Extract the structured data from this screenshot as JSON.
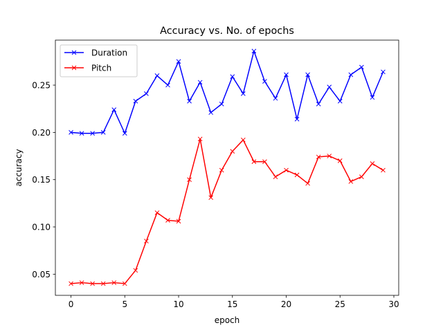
{
  "chart_data": {
    "type": "line",
    "title": "Accuracy vs. No. of epochs",
    "xlabel": "epoch",
    "ylabel": "accuracy",
    "xlim": [
      -1.45,
      30.45
    ],
    "ylim": [
      0.0276,
      0.2976
    ],
    "xticks": [
      0,
      5,
      10,
      15,
      20,
      25,
      30
    ],
    "yticks": [
      0.05,
      0.1,
      0.15,
      0.2,
      0.25
    ],
    "ytick_labels": [
      "0.05",
      "0.10",
      "0.15",
      "0.20",
      "0.25"
    ],
    "grid": false,
    "legend": "top-left",
    "x": [
      0,
      1,
      2,
      3,
      4,
      5,
      6,
      7,
      8,
      9,
      10,
      11,
      12,
      13,
      14,
      15,
      16,
      17,
      18,
      19,
      20,
      21,
      22,
      23,
      24,
      25,
      26,
      27,
      28,
      29
    ],
    "series": [
      {
        "name": "Duration",
        "color": "#0000ff",
        "marker": "x",
        "values": [
          0.2,
          0.199,
          0.199,
          0.2,
          0.224,
          0.199,
          0.233,
          0.241,
          0.26,
          0.25,
          0.275,
          0.233,
          0.253,
          0.221,
          0.23,
          0.259,
          0.241,
          0.286,
          0.254,
          0.236,
          0.261,
          0.214,
          0.261,
          0.23,
          0.248,
          0.233,
          0.261,
          0.269,
          0.237,
          0.264
        ]
      },
      {
        "name": "Pitch",
        "color": "#ff0000",
        "marker": "x",
        "values": [
          0.04,
          0.041,
          0.04,
          0.04,
          0.041,
          0.04,
          0.054,
          0.085,
          0.115,
          0.107,
          0.106,
          0.15,
          0.193,
          0.131,
          0.16,
          0.18,
          0.192,
          0.169,
          0.169,
          0.153,
          0.16,
          0.155,
          0.146,
          0.174,
          0.175,
          0.17,
          0.148,
          0.153,
          0.167,
          0.16
        ]
      }
    ]
  }
}
